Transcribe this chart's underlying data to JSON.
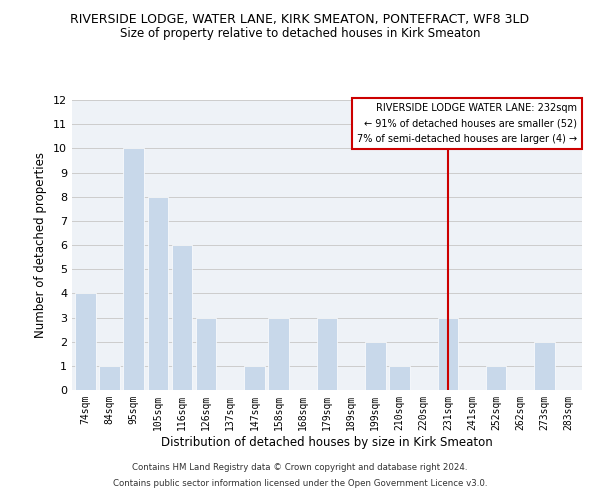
{
  "title_line1": "RIVERSIDE LODGE, WATER LANE, KIRK SMEATON, PONTEFRACT, WF8 3LD",
  "title_line2": "Size of property relative to detached houses in Kirk Smeaton",
  "xlabel": "Distribution of detached houses by size in Kirk Smeaton",
  "ylabel": "Number of detached properties",
  "bins": [
    "74sqm",
    "84sqm",
    "95sqm",
    "105sqm",
    "116sqm",
    "126sqm",
    "137sqm",
    "147sqm",
    "158sqm",
    "168sqm",
    "179sqm",
    "189sqm",
    "199sqm",
    "210sqm",
    "220sqm",
    "231sqm",
    "241sqm",
    "252sqm",
    "262sqm",
    "273sqm",
    "283sqm"
  ],
  "values": [
    4,
    1,
    10,
    8,
    6,
    3,
    0,
    1,
    3,
    0,
    3,
    0,
    2,
    1,
    0,
    3,
    0,
    1,
    0,
    2,
    0
  ],
  "bar_color": "#c8d8ea",
  "bar_edge_color": "#ffffff",
  "grid_color": "#cccccc",
  "background_color": "#ffffff",
  "plot_bg_color": "#eef2f7",
  "vline_x_index": 15,
  "vline_color": "#cc0000",
  "legend_title": "RIVERSIDE LODGE WATER LANE: 232sqm",
  "legend_line1": "← 91% of detached houses are smaller (52)",
  "legend_line2": "7% of semi-detached houses are larger (4) →",
  "legend_box_color": "#ffffff",
  "legend_border_color": "#cc0000",
  "ylim": [
    0,
    12
  ],
  "yticks": [
    0,
    1,
    2,
    3,
    4,
    5,
    6,
    7,
    8,
    9,
    10,
    11,
    12
  ],
  "footer1": "Contains HM Land Registry data © Crown copyright and database right 2024.",
  "footer2": "Contains public sector information licensed under the Open Government Licence v3.0."
}
